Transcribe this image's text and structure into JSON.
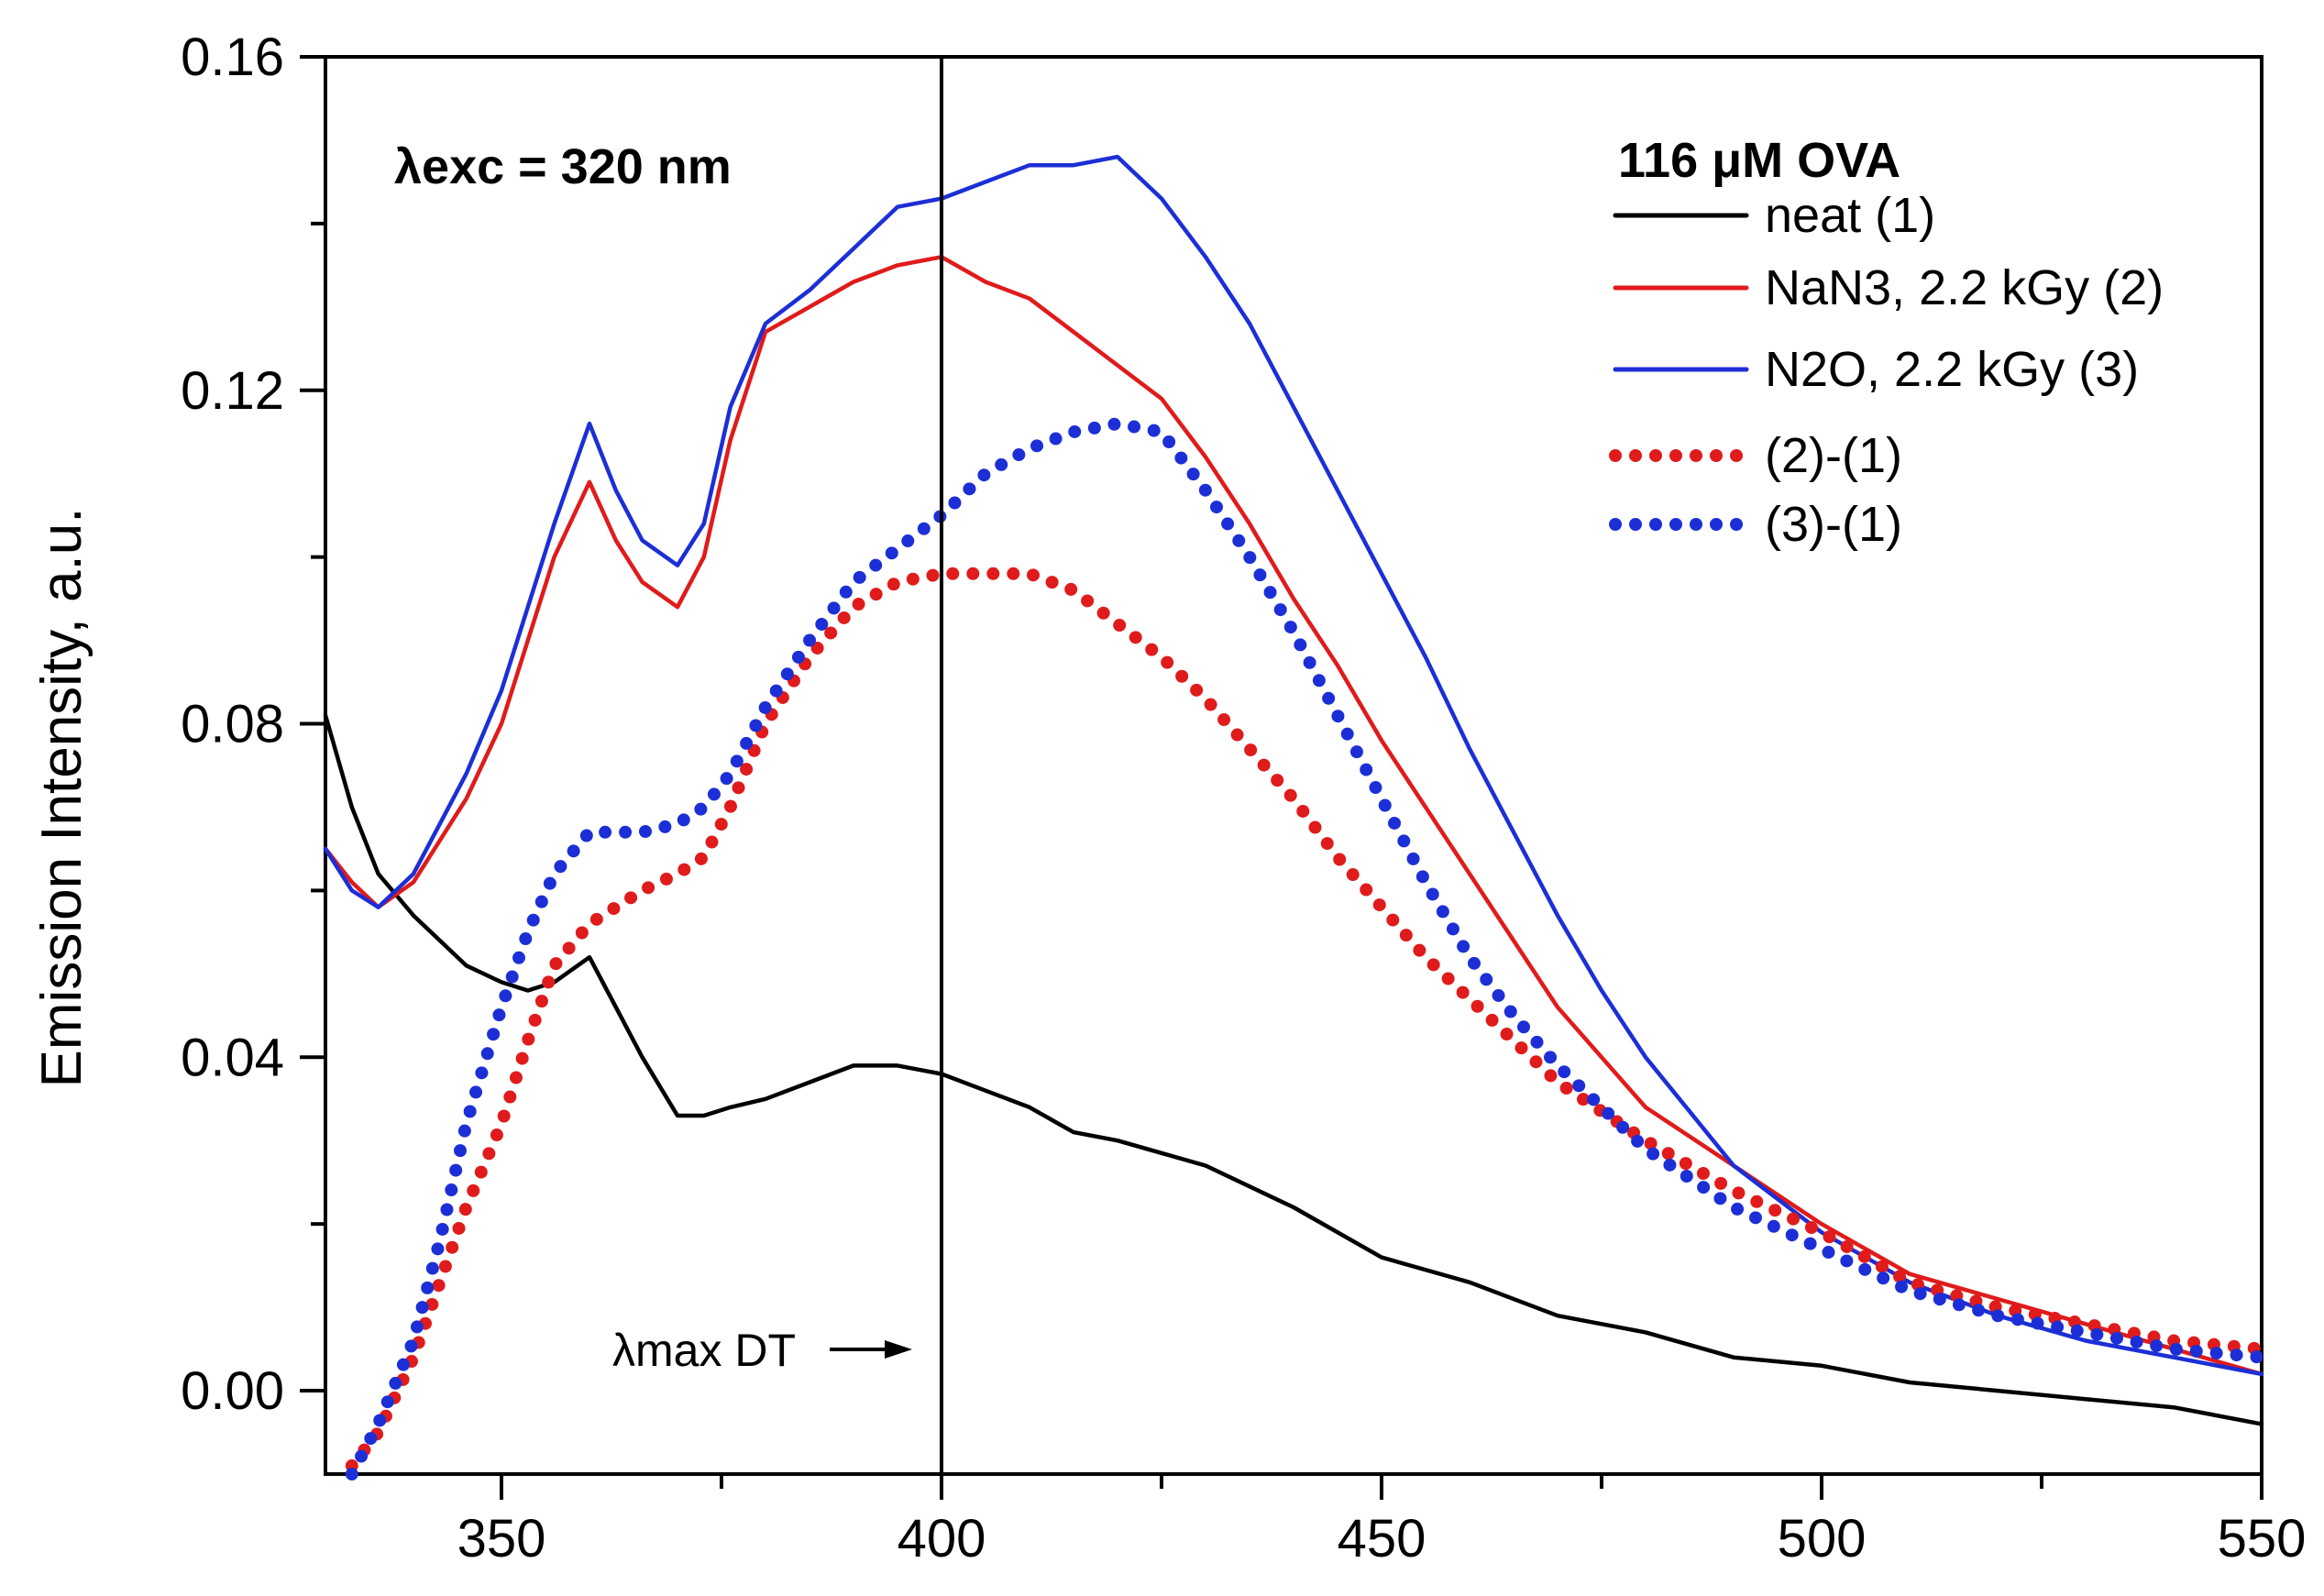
{
  "chart_data": {
    "type": "line",
    "title": "",
    "xlabel": "",
    "ylabel": "Emission Intensity, a.u.",
    "xlim": [
      330,
      550
    ],
    "ylim": [
      -0.01,
      0.16
    ],
    "xticks": [
      350,
      400,
      450,
      500,
      550
    ],
    "xtick_labels": [
      "350",
      "400",
      "450",
      "500",
      "550"
    ],
    "yticks": [
      0.0,
      0.04,
      0.08,
      0.12,
      0.16
    ],
    "ytick_labels": [
      "0.00",
      "0.04",
      "0.08",
      "0.12",
      "0.16"
    ],
    "grid": false,
    "legend": {
      "title": "116 μM OVA",
      "position": "top-right",
      "entries": [
        "neat (1)",
        "NaN3, 2.2 kGy (2)",
        "N2O, 2.2 kGy (3)",
        "(2)-(1)",
        "(3)-(1)"
      ]
    },
    "annotations": {
      "excitation": "λexc = 320 nm",
      "vline_x": 400,
      "vline_label": "λmax DT"
    },
    "series": [
      {
        "name": "neat (1)",
        "color": "#000000",
        "style": "solid",
        "x": [
          330,
          333,
          336,
          340,
          343,
          346,
          350,
          353,
          356,
          360,
          363,
          366,
          370,
          373,
          376,
          380,
          385,
          390,
          395,
          400,
          405,
          410,
          415,
          420,
          430,
          440,
          450,
          460,
          470,
          480,
          490,
          500,
          510,
          520,
          530,
          540,
          550
        ],
        "y": [
          0.081,
          0.07,
          0.062,
          0.057,
          0.054,
          0.051,
          0.049,
          0.048,
          0.049,
          0.052,
          0.046,
          0.04,
          0.033,
          0.033,
          0.034,
          0.035,
          0.037,
          0.039,
          0.039,
          0.038,
          0.036,
          0.034,
          0.031,
          0.03,
          0.027,
          0.022,
          0.016,
          0.013,
          0.009,
          0.007,
          0.004,
          0.003,
          0.001,
          0.0,
          -0.001,
          -0.002,
          -0.004
        ]
      },
      {
        "name": "NaN3, 2.2 kGy (2)",
        "color": "#e01b1b",
        "style": "solid",
        "x": [
          330,
          333,
          336,
          340,
          343,
          346,
          350,
          353,
          356,
          360,
          363,
          366,
          370,
          373,
          376,
          380,
          385,
          390,
          395,
          400,
          405,
          410,
          415,
          420,
          425,
          430,
          435,
          440,
          445,
          450,
          455,
          460,
          465,
          470,
          475,
          480,
          490,
          500,
          510,
          520,
          530,
          540,
          550
        ],
        "y": [
          0.065,
          0.061,
          0.058,
          0.061,
          0.066,
          0.071,
          0.08,
          0.09,
          0.1,
          0.109,
          0.102,
          0.097,
          0.094,
          0.1,
          0.114,
          0.127,
          0.13,
          0.133,
          0.135,
          0.136,
          0.133,
          0.131,
          0.127,
          0.123,
          0.119,
          0.112,
          0.104,
          0.095,
          0.087,
          0.078,
          0.07,
          0.062,
          0.054,
          0.046,
          0.04,
          0.034,
          0.027,
          0.02,
          0.014,
          0.011,
          0.008,
          0.005,
          0.002
        ]
      },
      {
        "name": "N2O, 2.2 kGy (3)",
        "color": "#1c2fd6",
        "style": "solid",
        "x": [
          330,
          333,
          336,
          340,
          343,
          346,
          350,
          353,
          356,
          360,
          363,
          366,
          370,
          373,
          376,
          380,
          385,
          390,
          395,
          400,
          405,
          410,
          415,
          420,
          425,
          430,
          435,
          440,
          445,
          450,
          455,
          460,
          465,
          470,
          475,
          480,
          490,
          500,
          510,
          520,
          530,
          540,
          550
        ],
        "y": [
          0.065,
          0.06,
          0.058,
          0.062,
          0.068,
          0.074,
          0.084,
          0.094,
          0.104,
          0.116,
          0.108,
          0.102,
          0.099,
          0.104,
          0.118,
          0.128,
          0.132,
          0.137,
          0.142,
          0.143,
          0.145,
          0.147,
          0.147,
          0.148,
          0.143,
          0.136,
          0.128,
          0.118,
          0.108,
          0.098,
          0.088,
          0.077,
          0.067,
          0.057,
          0.048,
          0.04,
          0.027,
          0.019,
          0.013,
          0.009,
          0.006,
          0.004,
          0.002
        ]
      },
      {
        "name": "(2)-(1)",
        "color": "#e01b1b",
        "style": "dotted",
        "x": [
          333,
          336,
          340,
          343,
          346,
          350,
          353,
          356,
          360,
          363,
          366,
          370,
          373,
          376,
          380,
          385,
          390,
          395,
          400,
          405,
          410,
          415,
          420,
          425,
          430,
          435,
          440,
          445,
          450,
          455,
          460,
          465,
          470,
          480,
          490,
          500,
          510,
          520,
          530,
          540,
          550
        ],
        "y": [
          -0.009,
          -0.005,
          0.004,
          0.013,
          0.022,
          0.032,
          0.042,
          0.051,
          0.056,
          0.058,
          0.06,
          0.062,
          0.064,
          0.07,
          0.08,
          0.088,
          0.094,
          0.097,
          0.098,
          0.098,
          0.098,
          0.096,
          0.092,
          0.088,
          0.083,
          0.077,
          0.071,
          0.064,
          0.058,
          0.052,
          0.047,
          0.042,
          0.037,
          0.03,
          0.024,
          0.019,
          0.013,
          0.01,
          0.008,
          0.006,
          0.005
        ]
      },
      {
        "name": "(3)-(1)",
        "color": "#1c2fd6",
        "style": "dotted",
        "x": [
          333,
          336,
          340,
          343,
          346,
          350,
          353,
          356,
          360,
          363,
          366,
          370,
          373,
          376,
          380,
          385,
          390,
          395,
          400,
          405,
          410,
          415,
          420,
          425,
          430,
          435,
          440,
          445,
          450,
          455,
          460,
          465,
          470,
          480,
          490,
          500,
          510,
          520,
          530,
          540,
          550
        ],
        "y": [
          -0.01,
          -0.004,
          0.006,
          0.018,
          0.032,
          0.046,
          0.055,
          0.062,
          0.067,
          0.067,
          0.067,
          0.068,
          0.07,
          0.074,
          0.082,
          0.09,
          0.097,
          0.101,
          0.105,
          0.11,
          0.113,
          0.115,
          0.116,
          0.115,
          0.108,
          0.1,
          0.091,
          0.081,
          0.071,
          0.061,
          0.052,
          0.045,
          0.039,
          0.029,
          0.022,
          0.017,
          0.012,
          0.009,
          0.007,
          0.005,
          0.004
        ]
      }
    ]
  }
}
